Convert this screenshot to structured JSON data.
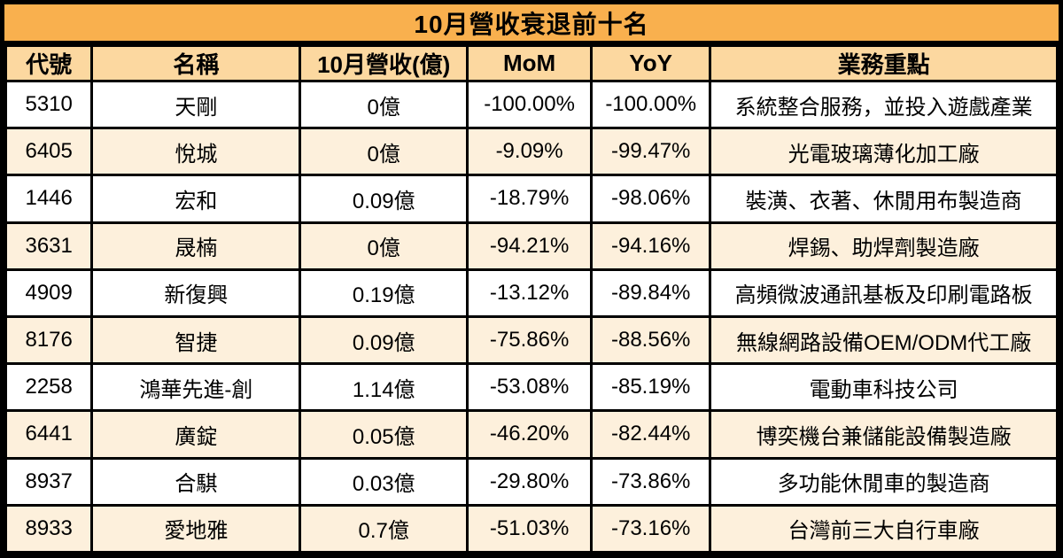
{
  "title": "10月營收衰退前十名",
  "colors": {
    "title_bg": "#F9B04E",
    "header_bg": "#FCD8A0",
    "row_even_bg": "#FDF0DC",
    "row_odd_bg": "#FFFFFF",
    "border": "#000000",
    "text": "#000000"
  },
  "chart_data": {
    "type": "table",
    "title": "10月營收衰退前十名",
    "columns": [
      {
        "key": "code",
        "label": "代號"
      },
      {
        "key": "name",
        "label": "名稱"
      },
      {
        "key": "revenue",
        "label": "10月營收(億)"
      },
      {
        "key": "mom",
        "label": "MoM"
      },
      {
        "key": "yoy",
        "label": "YoY"
      },
      {
        "key": "business",
        "label": "業務重點"
      }
    ],
    "rows": [
      {
        "code": "5310",
        "name": "天剛",
        "revenue": "0億",
        "mom": "-100.00%",
        "yoy": "-100.00%",
        "business": "系統整合服務，並投入遊戲產業"
      },
      {
        "code": "6405",
        "name": "悅城",
        "revenue": "0億",
        "mom": "-9.09%",
        "yoy": "-99.47%",
        "business": "光電玻璃薄化加工廠"
      },
      {
        "code": "1446",
        "name": "宏和",
        "revenue": "0.09億",
        "mom": "-18.79%",
        "yoy": "-98.06%",
        "business": "裝潢、衣著、休閒用布製造商"
      },
      {
        "code": "3631",
        "name": "晟楠",
        "revenue": "0億",
        "mom": "-94.21%",
        "yoy": "-94.16%",
        "business": "焊錫、助焊劑製造廠"
      },
      {
        "code": "4909",
        "name": "新復興",
        "revenue": "0.19億",
        "mom": "-13.12%",
        "yoy": "-89.84%",
        "business": "高頻微波通訊基板及印刷電路板"
      },
      {
        "code": "8176",
        "name": "智捷",
        "revenue": "0.09億",
        "mom": "-75.86%",
        "yoy": "-88.56%",
        "business": "無線網路設備OEM/ODM代工廠"
      },
      {
        "code": "2258",
        "name": "鴻華先進-創",
        "revenue": "1.14億",
        "mom": "-53.08%",
        "yoy": "-85.19%",
        "business": "電動車科技公司"
      },
      {
        "code": "6441",
        "name": "廣錠",
        "revenue": "0.05億",
        "mom": "-46.20%",
        "yoy": "-82.44%",
        "business": "博奕機台兼儲能設備製造廠"
      },
      {
        "code": "8937",
        "name": "合騏",
        "revenue": "0.03億",
        "mom": "-29.80%",
        "yoy": "-73.86%",
        "business": "多功能休閒車的製造商"
      },
      {
        "code": "8933",
        "name": "愛地雅",
        "revenue": "0.7億",
        "mom": "-51.03%",
        "yoy": "-73.16%",
        "business": "台灣前三大自行車廠"
      }
    ]
  }
}
